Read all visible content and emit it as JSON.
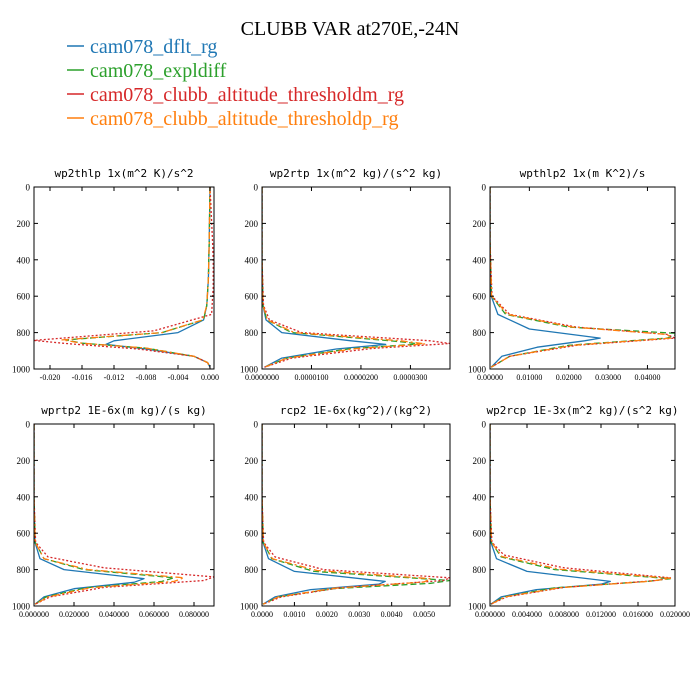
{
  "figure": {
    "title": "CLUBB VAR at270E,-24N",
    "legend": [
      {
        "label": "cam078_dflt_rg",
        "color": "#1f77b4",
        "dash": "solid"
      },
      {
        "label": "cam078_expldiff",
        "color": "#2ca02c",
        "dash": "dashed"
      },
      {
        "label": "cam078_clubb_altitude_thresholdm_rg",
        "color": "#d62728",
        "dash": "dotted"
      },
      {
        "label": "cam078_clubb_altitude_thresholdp_rg",
        "color": "#ff7f0e",
        "dash": "dashdot"
      }
    ]
  },
  "chart_data": [
    {
      "type": "line",
      "title": "wp2thlp  1x(m^2 K)/s^2",
      "xlim": [
        -0.022,
        0.0005
      ],
      "ylim": [
        1000,
        0
      ],
      "x_ticks": [
        -0.02,
        -0.016,
        -0.012,
        -0.008,
        -0.004,
        0.0
      ],
      "x_tick_labels": [
        "-0.020",
        "-0.016",
        "-0.012",
        "-0.008",
        "-0.004",
        "0.000"
      ],
      "y_ticks": [
        0,
        200,
        400,
        600,
        800,
        1000
      ],
      "y_tick_labels": [
        "0",
        "200",
        "400",
        "600",
        "800",
        "1000"
      ],
      "series": [
        {
          "name": "cam078_dflt_rg",
          "x": [
            0,
            -0.0001,
            -0.0002,
            -0.0004,
            -0.0008,
            -0.004,
            -0.012,
            -0.013,
            -0.008,
            -0.002,
            -0.0003,
            0
          ],
          "y": [
            0,
            300,
            500,
            650,
            730,
            800,
            845,
            865,
            890,
            930,
            965,
            990
          ]
        },
        {
          "name": "cam078_expldiff",
          "x": [
            0,
            -0.0001,
            -0.0002,
            -0.0004,
            -0.0008,
            -0.006,
            -0.018,
            -0.016,
            -0.008,
            -0.002,
            -0.0003,
            0
          ],
          "y": [
            0,
            300,
            500,
            650,
            730,
            800,
            840,
            858,
            885,
            930,
            965,
            990
          ]
        },
        {
          "name": "cam078_clubb_altitude_thresholdm_rg",
          "x": [
            0,
            0.0003,
            0.0004,
            0.0004,
            0.0002,
            -0.007,
            -0.022,
            -0.018,
            -0.009,
            -0.002,
            -0.0003,
            0
          ],
          "y": [
            0,
            280,
            400,
            550,
            700,
            790,
            843,
            860,
            890,
            930,
            965,
            990
          ]
        },
        {
          "name": "cam078_clubb_altitude_thresholdp_rg",
          "x": [
            0,
            -0.0001,
            -0.0002,
            -0.0004,
            -0.0009,
            -0.006,
            -0.0185,
            -0.016,
            -0.008,
            -0.002,
            -0.0003,
            0
          ],
          "y": [
            0,
            300,
            500,
            650,
            730,
            800,
            840,
            858,
            885,
            930,
            965,
            990
          ]
        }
      ]
    },
    {
      "type": "line",
      "title": "wp2rtp  1x(m^2 kg)/(s^2 kg)",
      "xlim": [
        0,
        3.8e-05
      ],
      "ylim": [
        1000,
        0
      ],
      "x_ticks": [
        0,
        1e-05,
        2e-05,
        3e-05
      ],
      "x_tick_labels": [
        "0.0000000",
        "0.0000100",
        "0.0000200",
        "0.0000300"
      ],
      "y_ticks": [
        0,
        200,
        400,
        600,
        800,
        1000
      ],
      "y_tick_labels": [
        "0",
        "200",
        "400",
        "600",
        "800",
        "1000"
      ],
      "series": [
        {
          "name": "cam078_dflt_rg",
          "x": [
            0,
            0,
            2e-07,
            8e-07,
            4e-06,
            1.8e-05,
            2.5e-05,
            1.5e-05,
            4e-06,
            5e-07
          ],
          "y": [
            0,
            400,
            650,
            730,
            800,
            845,
            865,
            890,
            940,
            990
          ]
        },
        {
          "name": "cam078_expldiff",
          "x": [
            0,
            0,
            2e-07,
            1e-06,
            6e-06,
            2.6e-05,
            3.2e-05,
            1.8e-05,
            5e-06,
            5e-07
          ],
          "y": [
            0,
            400,
            650,
            730,
            800,
            845,
            862,
            888,
            940,
            990
          ]
        },
        {
          "name": "cam078_clubb_altitude_thresholdm_rg",
          "x": [
            0,
            0,
            3e-07,
            1.5e-06,
            8e-06,
            3.4e-05,
            3.8e-05,
            2.2e-05,
            6e-06,
            5e-07
          ],
          "y": [
            0,
            400,
            650,
            730,
            800,
            845,
            860,
            888,
            940,
            990
          ]
        },
        {
          "name": "cam078_clubb_altitude_thresholdp_rg",
          "x": [
            0,
            0,
            2e-07,
            1.1e-06,
            6.5e-06,
            2.8e-05,
            3.3e-05,
            1.9e-05,
            5e-06,
            5e-07
          ],
          "y": [
            0,
            400,
            650,
            730,
            800,
            845,
            862,
            888,
            940,
            990
          ]
        }
      ]
    },
    {
      "type": "line",
      "title": "wpthlp2  1x(m K^2)/s",
      "xlim": [
        0,
        0.047
      ],
      "ylim": [
        1000,
        0
      ],
      "x_ticks": [
        0,
        0.01,
        0.02,
        0.03,
        0.04
      ],
      "x_tick_labels": [
        "0.00000",
        "0.01000",
        "0.02000",
        "0.03000",
        "0.04000"
      ],
      "y_ticks": [
        0,
        200,
        400,
        600,
        800,
        1000
      ],
      "y_tick_labels": [
        "0",
        "200",
        "400",
        "600",
        "800",
        "1000"
      ],
      "series": [
        {
          "name": "cam078_dflt_rg",
          "x": [
            0,
            0,
            0.0003,
            0.002,
            0.01,
            0.028,
            0.024,
            0.012,
            0.003,
            0.0003
          ],
          "y": [
            0,
            300,
            600,
            700,
            780,
            830,
            845,
            880,
            930,
            990
          ]
        },
        {
          "name": "cam078_expldiff",
          "x": [
            0,
            0,
            0.0004,
            0.004,
            0.02,
            0.048,
            0.045,
            0.02,
            0.005,
            0.0003
          ],
          "y": [
            0,
            300,
            600,
            700,
            770,
            805,
            830,
            870,
            930,
            990
          ]
        },
        {
          "name": "cam078_clubb_altitude_thresholdm_rg",
          "x": [
            0,
            0,
            0.0005,
            0.005,
            0.022,
            0.045,
            0.047,
            0.022,
            0.005,
            0.0003
          ],
          "y": [
            0,
            300,
            600,
            700,
            770,
            810,
            830,
            870,
            930,
            990
          ]
        },
        {
          "name": "cam078_clubb_altitude_thresholdp_rg",
          "x": [
            0,
            0,
            0.0004,
            0.0045,
            0.021,
            0.045,
            0.046,
            0.021,
            0.005,
            0.0003
          ],
          "y": [
            0,
            300,
            600,
            700,
            770,
            810,
            830,
            870,
            930,
            990
          ]
        }
      ]
    },
    {
      "type": "line",
      "title": "wprtp2  1E-6x(m kg)/(s kg)",
      "xlim": [
        0,
        0.09
      ],
      "ylim": [
        1000,
        0
      ],
      "x_ticks": [
        0,
        0.02,
        0.04,
        0.06,
        0.08
      ],
      "x_tick_labels": [
        "0.000000",
        "0.020000",
        "0.040000",
        "0.060000",
        "0.080000"
      ],
      "y_ticks": [
        0,
        200,
        400,
        600,
        800,
        1000
      ],
      "y_tick_labels": [
        "0",
        "200",
        "400",
        "600",
        "800",
        "1000"
      ],
      "series": [
        {
          "name": "cam078_dflt_rg",
          "x": [
            0,
            0,
            0.0005,
            0.003,
            0.015,
            0.055,
            0.05,
            0.02,
            0.005,
            0.0005
          ],
          "y": [
            0,
            400,
            650,
            740,
            800,
            850,
            870,
            905,
            950,
            990
          ]
        },
        {
          "name": "cam078_expldiff",
          "x": [
            0,
            0,
            0.0006,
            0.005,
            0.025,
            0.07,
            0.064,
            0.026,
            0.006,
            0.0005
          ],
          "y": [
            0,
            400,
            650,
            740,
            800,
            845,
            865,
            900,
            950,
            990
          ]
        },
        {
          "name": "cam078_clubb_altitude_thresholdm_rg",
          "x": [
            0,
            0,
            0.0008,
            0.007,
            0.035,
            0.09,
            0.085,
            0.035,
            0.008,
            0.0005
          ],
          "y": [
            0,
            400,
            650,
            730,
            790,
            840,
            860,
            898,
            950,
            990
          ]
        },
        {
          "name": "cam078_clubb_altitude_thresholdp_rg",
          "x": [
            0,
            0,
            0.0006,
            0.005,
            0.027,
            0.075,
            0.07,
            0.028,
            0.007,
            0.0005
          ],
          "y": [
            0,
            400,
            650,
            740,
            800,
            845,
            865,
            900,
            950,
            990
          ]
        }
      ]
    },
    {
      "type": "line",
      "title": "rcp2  1E-6x(kg^2)/(kg^2)",
      "xlim": [
        0,
        0.0058
      ],
      "ylim": [
        1000,
        0
      ],
      "x_ticks": [
        0,
        0.001,
        0.002,
        0.003,
        0.004,
        0.005
      ],
      "x_tick_labels": [
        "0.0000",
        "0.0010",
        "0.0020",
        "0.0030",
        "0.0040",
        "0.0050"
      ],
      "y_ticks": [
        0,
        200,
        400,
        600,
        800,
        1000
      ],
      "y_tick_labels": [
        "0",
        "200",
        "400",
        "600",
        "800",
        "1000"
      ],
      "series": [
        {
          "name": "cam078_dflt_rg",
          "x": [
            0,
            0,
            3e-05,
            0.0002,
            0.001,
            0.0038,
            0.0036,
            0.0015,
            0.0004,
            3e-05
          ],
          "y": [
            0,
            400,
            650,
            740,
            810,
            865,
            880,
            910,
            950,
            990
          ]
        },
        {
          "name": "cam078_expldiff",
          "x": [
            0,
            0,
            4e-05,
            0.0003,
            0.0016,
            0.0058,
            0.0052,
            0.0022,
            0.0005,
            3e-05
          ],
          "y": [
            0,
            400,
            650,
            740,
            810,
            860,
            875,
            905,
            950,
            990
          ]
        },
        {
          "name": "cam078_clubb_altitude_thresholdm_rg",
          "x": [
            0,
            0,
            5e-05,
            0.0004,
            0.0019,
            0.0058,
            0.0056,
            0.0024,
            0.0006,
            3e-05
          ],
          "y": [
            0,
            400,
            650,
            730,
            800,
            845,
            860,
            900,
            950,
            990
          ]
        },
        {
          "name": "cam078_clubb_altitude_thresholdp_rg",
          "x": [
            0,
            0,
            4e-05,
            0.00032,
            0.0017,
            0.0052,
            0.005,
            0.0022,
            0.0005,
            3e-05
          ],
          "y": [
            0,
            400,
            650,
            740,
            805,
            850,
            868,
            903,
            950,
            990
          ]
        }
      ]
    },
    {
      "type": "line",
      "title": "wp2rcp  1E-3x(m^2 kg)/(s^2 kg)",
      "xlim": [
        0,
        0.02
      ],
      "ylim": [
        1000,
        0
      ],
      "x_ticks": [
        0,
        0.004,
        0.008,
        0.012,
        0.016,
        0.02
      ],
      "x_tick_labels": [
        "0.000000",
        "0.004000",
        "0.008000",
        "0.012000",
        "0.016000",
        "0.020000"
      ],
      "y_ticks": [
        0,
        200,
        400,
        600,
        800,
        1000
      ],
      "y_tick_labels": [
        "0",
        "200",
        "400",
        "600",
        "800",
        "1000"
      ],
      "series": [
        {
          "name": "cam078_dflt_rg",
          "x": [
            0,
            0,
            0.0001,
            0.0007,
            0.004,
            0.013,
            0.012,
            0.005,
            0.0012,
            0.0001
          ],
          "y": [
            0,
            400,
            650,
            740,
            810,
            865,
            880,
            910,
            950,
            990
          ]
        },
        {
          "name": "cam078_expldiff",
          "x": [
            0,
            0,
            0.00015,
            0.0012,
            0.007,
            0.0195,
            0.017,
            0.007,
            0.0015,
            0.0001
          ],
          "y": [
            0,
            400,
            650,
            730,
            800,
            850,
            865,
            900,
            950,
            990
          ]
        },
        {
          "name": "cam078_clubb_altitude_thresholdm_rg",
          "x": [
            0,
            0,
            0.0002,
            0.0015,
            0.008,
            0.0195,
            0.018,
            0.008,
            0.0018,
            0.0001
          ],
          "y": [
            0,
            400,
            650,
            720,
            790,
            845,
            860,
            898,
            950,
            990
          ]
        },
        {
          "name": "cam078_clubb_altitude_thresholdp_rg",
          "x": [
            0,
            0,
            0.00015,
            0.0013,
            0.0075,
            0.0195,
            0.0175,
            0.0075,
            0.0016,
            0.0001
          ],
          "y": [
            0,
            400,
            650,
            728,
            798,
            848,
            863,
            900,
            950,
            990
          ]
        }
      ]
    }
  ]
}
